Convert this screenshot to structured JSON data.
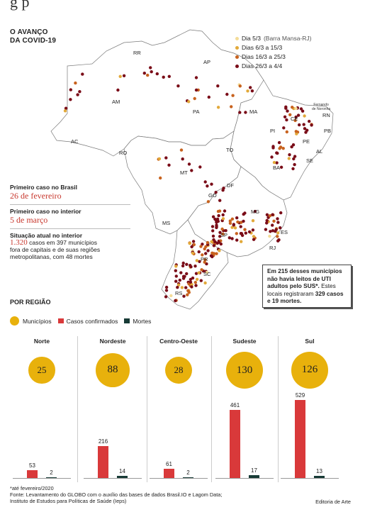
{
  "header_fragment": "g        p",
  "map": {
    "title_line1": "O AVANÇO",
    "title_line2": "DA COVID-19",
    "legend": [
      {
        "label": "Dia 5/3",
        "note": "(Barra Mansa-RJ)",
        "color": "#f4dc98"
      },
      {
        "label": "Dias 6/3 a 15/3",
        "color": "#e2a93a"
      },
      {
        "label": "Dias 16/3 a 25/3",
        "color": "#c8621e"
      },
      {
        "label": "Dias 26/3 a 4/4",
        "color": "#7a0c18"
      }
    ],
    "states": [
      "RR",
      "AP",
      "AM",
      "PA",
      "MA",
      "CE",
      "RN",
      "PB",
      "PI",
      "PE",
      "AL",
      "SE",
      "AC",
      "RO",
      "TO",
      "BA",
      "MT",
      "GO",
      "DF",
      "MG",
      "MS",
      "ES",
      "RJ",
      "SP",
      "PR",
      "SC",
      "RS"
    ],
    "fernando_label_1": "Fernando",
    "fernando_label_2": "de Noronha"
  },
  "side": {
    "first_case_label": "Primeiro caso no Brasil",
    "first_case_date": "26 de fevereiro",
    "first_interior_label": "Primeiro caso no interior",
    "first_interior_date": "5 de março",
    "situation_label": "Situação atual no interior",
    "situation_number": "1.320",
    "situation_text": " casos em 397 municípios fora de capitais e de suas regiões metropolitanas, com 48 mortes"
  },
  "callout": {
    "bold_text": "Em 215 desses municípios não havia leitos de UTI adultos pelo SUS*.",
    "text": " Estes locais registraram ",
    "bold_tail": "329 casos e 19 mortes."
  },
  "regions_title": "POR REGIÃO",
  "legend_bars": {
    "municipios": "Municípios",
    "casos": "Casos confirmados",
    "mortes": "Mortes"
  },
  "colors": {
    "municipios": "#e8b10c",
    "casos": "#d9393a",
    "mortes": "#173b36"
  },
  "chart_data": {
    "type": "bar",
    "categories": [
      "Norte",
      "Nordeste",
      "Centro-Oeste",
      "Sudeste",
      "Sul"
    ],
    "series": [
      {
        "name": "Municípios",
        "values": [
          25,
          88,
          28,
          130,
          126
        ]
      },
      {
        "name": "Casos confirmados",
        "values": [
          53,
          216,
          61,
          461,
          529
        ]
      },
      {
        "name": "Mortes",
        "values": [
          2,
          14,
          2,
          17,
          13
        ]
      }
    ]
  },
  "footer": {
    "line1": "*até fevereiro/2020",
    "line2": "Fonte: Levantamento do GLOBO com o auxílio das bases de dados Brasil.IO e Lagom Data;",
    "line3": "Instituto de Estudos para Políticas de Saúde (Ieps)",
    "credit": "Editoria de Arte"
  }
}
